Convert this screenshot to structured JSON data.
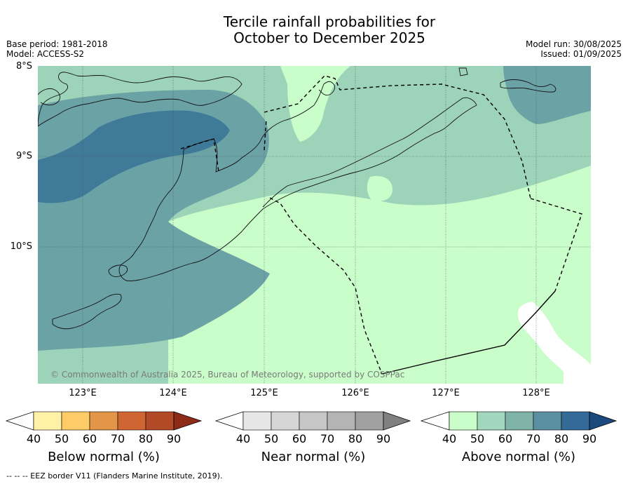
{
  "title_line1": "Tercile rainfall probabilities for",
  "title_line2": "October to December 2025",
  "meta_left": {
    "base_period": "Base period: 1981-2018",
    "model": "Model: ACCESS-S2"
  },
  "meta_right": {
    "model_run": "Model run: 30/08/2025",
    "issued": "Issued: 01/09/2025"
  },
  "map": {
    "lat_labels": [
      "8°S",
      "9°S",
      "10°S"
    ],
    "lon_labels": [
      "123°E",
      "124°E",
      "125°E",
      "126°E",
      "127°E",
      "128°E"
    ],
    "copyright": "© Commonwealth of Australia 2025, Bureau of Meteorology, supported by COSPPac",
    "colors": {
      "above_40": "#c9fdc9",
      "above_50": "#9dd3b8",
      "above_60": "#6aa2a6",
      "above_70": "#3f7a98",
      "coast": "#111111",
      "border": "#000000",
      "grid": "#555555"
    }
  },
  "legends": [
    {
      "title": "Below normal (%)",
      "ticks": [
        "40",
        "50",
        "60",
        "70",
        "80",
        "90"
      ],
      "colors": [
        "#ffffff",
        "#fff1a6",
        "#fecb66",
        "#e39548",
        "#cf6533",
        "#b34a27",
        "#8e2b17"
      ]
    },
    {
      "title": "Near normal (%)",
      "ticks": [
        "40",
        "50",
        "60",
        "70",
        "80",
        "90"
      ],
      "colors": [
        "#ffffff",
        "#e6e6e6",
        "#d6d6d6",
        "#c6c6c6",
        "#b4b4b4",
        "#a1a1a1",
        "#808080"
      ]
    },
    {
      "title": "Above normal (%)",
      "ticks": [
        "40",
        "50",
        "60",
        "70",
        "80",
        "90"
      ],
      "colors": [
        "#ffffff",
        "#c9fdc9",
        "#a1d8bd",
        "#80b3a8",
        "#5a8fa2",
        "#336a97",
        "#1b4b7e"
      ]
    }
  ],
  "footnote": "--  --  -- EEZ border V11 (Flanders Marine Institute, 2019)."
}
